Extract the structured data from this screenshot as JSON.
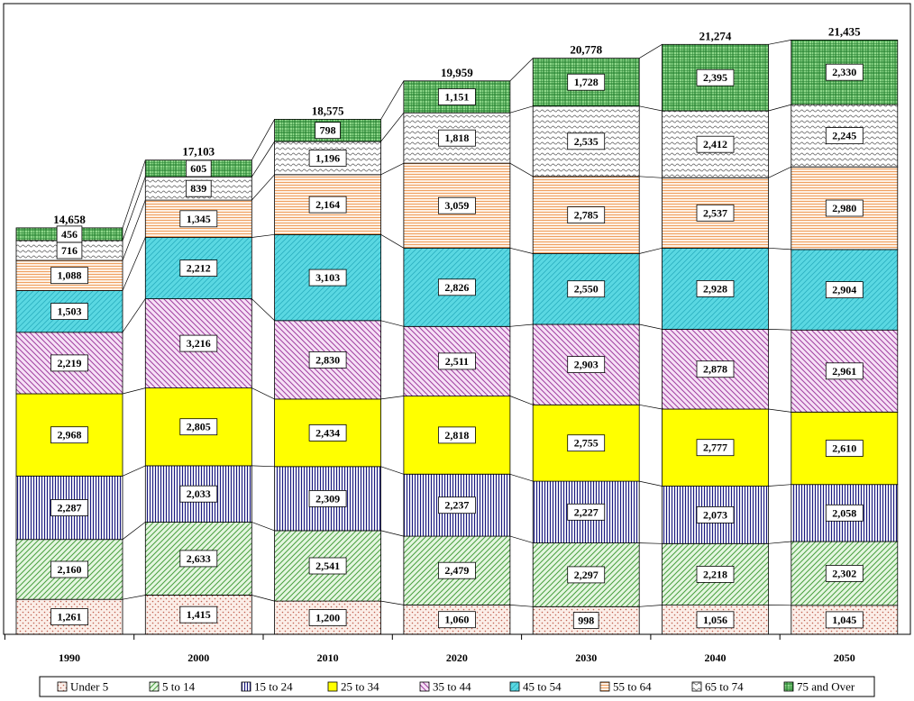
{
  "chart_data": {
    "type": "bar",
    "stacked": true,
    "categories": [
      "1990",
      "2000",
      "2010",
      "2020",
      "2030",
      "2040",
      "2050"
    ],
    "series": [
      {
        "name": "Under 5",
        "color": "#f4d4c8",
        "pattern": "dots",
        "values": [
          1261,
          1415,
          1200,
          1060,
          998,
          1056,
          1045
        ]
      },
      {
        "name": "5 to 14",
        "color": "#b8e6b0",
        "pattern": "diagonal",
        "values": [
          2160,
          2633,
          2541,
          2479,
          2297,
          2218,
          2302
        ]
      },
      {
        "name": "15 to 24",
        "color": "#1a1a80",
        "pattern": "vertical",
        "values": [
          2287,
          2033,
          2309,
          2237,
          2227,
          2073,
          2058
        ]
      },
      {
        "name": "25 to 34",
        "color": "#ffff00",
        "pattern": "solid",
        "values": [
          2968,
          2805,
          2434,
          2818,
          2755,
          2777,
          2610
        ]
      },
      {
        "name": "35 to 44",
        "color": "#e8b8e8",
        "pattern": "diagonal-rev",
        "values": [
          2219,
          3216,
          2830,
          2511,
          2903,
          2878,
          2961
        ]
      },
      {
        "name": "45 to 54",
        "color": "#4fd8e0",
        "pattern": "fine-diagonal",
        "values": [
          1503,
          2212,
          3103,
          2826,
          2550,
          2928,
          2904
        ]
      },
      {
        "name": "55 to 64",
        "color": "#f0a060",
        "pattern": "horizontal",
        "values": [
          1088,
          1345,
          2164,
          3059,
          2785,
          2537,
          2980
        ]
      },
      {
        "name": "65 to 74",
        "color": "#aaaaaa",
        "pattern": "wave",
        "values": [
          716,
          839,
          1196,
          1818,
          2535,
          2412,
          2245
        ]
      },
      {
        "name": "75 and Over",
        "color": "#2e9e40",
        "pattern": "grid",
        "values": [
          456,
          605,
          798,
          1151,
          1728,
          2395,
          2330
        ]
      }
    ],
    "totals": [
      "14,658",
      "17,103",
      "18,575",
      "19,959",
      "20,778",
      "21,274",
      "21,435"
    ],
    "value_labels": [
      [
        "1,261",
        "1,415",
        "1,200",
        "1,060",
        "998",
        "1,056",
        "1,045"
      ],
      [
        "2,160",
        "2,633",
        "2,541",
        "2,479",
        "2,297",
        "2,218",
        "2,302"
      ],
      [
        "2,287",
        "2,033",
        "2,309",
        "2,237",
        "2,227",
        "2,073",
        "2,058"
      ],
      [
        "2,968",
        "2,805",
        "2,434",
        "2,818",
        "2,755",
        "2,777",
        "2,610"
      ],
      [
        "2,219",
        "3,216",
        "2,830",
        "2,511",
        "2,903",
        "2,878",
        "2,961"
      ],
      [
        "1,503",
        "2,212",
        "3,103",
        "2,826",
        "2,550",
        "2,928",
        "2,904"
      ],
      [
        "1,088",
        "1,345",
        "2,164",
        "3,059",
        "2,785",
        "2,537",
        "2,980"
      ],
      [
        "716",
        "839",
        "1,196",
        "1,818",
        "2,535",
        "2,412",
        "2,245"
      ],
      [
        "456",
        "605",
        "798",
        "1,151",
        "1,728",
        "2,395",
        "2,330"
      ]
    ],
    "ylim": [
      0,
      22000
    ],
    "grid": false,
    "legend_position": "bottom"
  }
}
